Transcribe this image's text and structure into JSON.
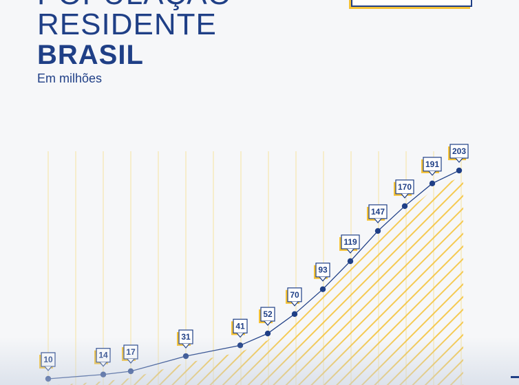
{
  "header": {
    "title_line1": "POPULAÇÃO",
    "title_line2": "RESIDENTE",
    "title_bold": "BRASIL",
    "subtitle": "Em milhões"
  },
  "colors": {
    "navy": "#1f3f86",
    "accent_yellow": "#f5c236",
    "grid_line": "#f7e3a0",
    "background": "#f6f7f9"
  },
  "chart_data": {
    "type": "line",
    "title": "",
    "xlabel": "",
    "ylabel": "",
    "grid": "vertical",
    "area_fill": "diagonal-hatch-yellow",
    "series": [
      {
        "values": [
          10,
          14,
          17,
          31,
          41,
          52,
          70,
          93,
          119,
          147,
          170,
          191,
          203
        ],
        "labels": [
          "10",
          "14",
          "17",
          "31",
          "41",
          "52",
          "70",
          "93",
          "119",
          "147",
          "170",
          "191",
          "203"
        ]
      }
    ]
  }
}
